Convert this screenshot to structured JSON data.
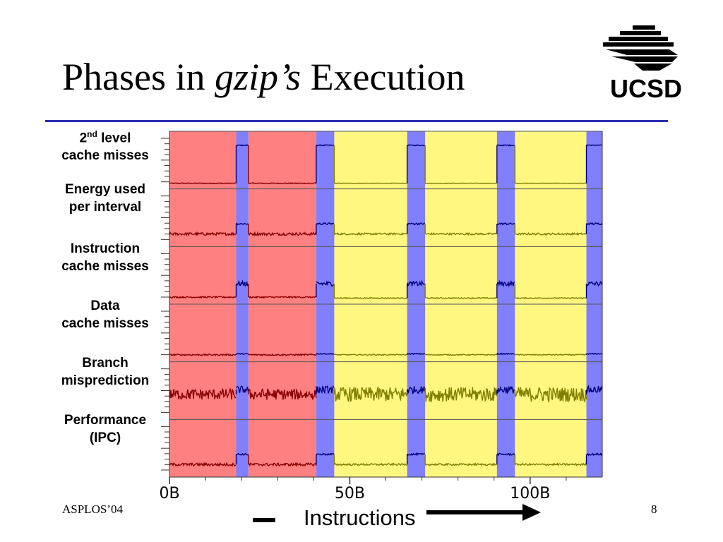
{
  "slide": {
    "title_pre": "Phases in ",
    "title_em": "gzip’s",
    "title_post": " Execution",
    "logo_text": "UCSD",
    "footer_left": "ASPLOS’04",
    "page_number": "8"
  },
  "colors": {
    "accent_rule": "#2b2fb0",
    "phase_red": "#ff8080",
    "phase_yellow": "#fff780",
    "phase_blue": "#8080ff",
    "trace_red": "#8b0000",
    "trace_olive": "#808000",
    "trace_navy": "#000080"
  },
  "chart_data": {
    "type": "line",
    "title": "",
    "xlabel": "Instructions",
    "x_ticks": [
      "0B",
      "50B",
      "100B"
    ],
    "x_tick_values": [
      0,
      50,
      100
    ],
    "xlim": [
      0,
      120
    ],
    "metrics": [
      {
        "name": "2nd level cache misses",
        "label_line1_base": "2",
        "label_line1_sup": "nd",
        "label_line1_rest": " level",
        "label_line2": "cache misses"
      },
      {
        "name": "Energy used per interval",
        "label_line1": "Energy used",
        "label_line2": "per interval"
      },
      {
        "name": "Instruction cache misses",
        "label_line1": "Instruction",
        "label_line2": "cache misses"
      },
      {
        "name": "Data cache misses",
        "label_line1": "Data",
        "label_line2": "cache misses"
      },
      {
        "name": "Branch misprediction",
        "label_line1": "Branch",
        "label_line2": "misprediction"
      },
      {
        "name": "Performance (IPC)",
        "label_line1": "Performance",
        "label_line2": "(IPC)"
      }
    ],
    "phases": [
      {
        "start": 0.0,
        "end": 18.5,
        "phase": "red"
      },
      {
        "start": 18.5,
        "end": 21.9,
        "phase": "blue"
      },
      {
        "start": 21.9,
        "end": 40.7,
        "phase": "red"
      },
      {
        "start": 40.7,
        "end": 45.7,
        "phase": "blue"
      },
      {
        "start": 45.7,
        "end": 65.9,
        "phase": "yellow"
      },
      {
        "start": 65.9,
        "end": 70.9,
        "phase": "blue"
      },
      {
        "start": 70.9,
        "end": 90.8,
        "phase": "yellow"
      },
      {
        "start": 90.8,
        "end": 95.8,
        "phase": "blue"
      },
      {
        "start": 95.8,
        "end": 115.6,
        "phase": "yellow"
      },
      {
        "start": 115.6,
        "end": 120.0,
        "phase": "blue"
      }
    ],
    "phase_levels": {
      "red": [
        0.03,
        0.18,
        0.06,
        0.06,
        0.45,
        0.18
      ],
      "blue": [
        0.85,
        0.4,
        0.35,
        0.08,
        0.55,
        0.4
      ],
      "yellow": [
        0.03,
        0.18,
        0.04,
        0.06,
        0.45,
        0.18
      ]
    },
    "phase_noise": {
      "red": [
        0.01,
        0.03,
        0.015,
        0.015,
        0.12,
        0.03
      ],
      "blue": [
        0.01,
        0.02,
        0.05,
        0.01,
        0.08,
        0.02
      ],
      "yellow": [
        0.005,
        0.02,
        0.01,
        0.01,
        0.16,
        0.02
      ]
    },
    "grid": true,
    "legend": "none"
  }
}
